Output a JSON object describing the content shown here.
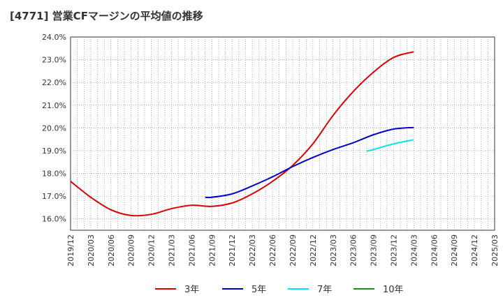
{
  "chart_data": {
    "type": "line",
    "title": "[4771]  営業CFマージンの平均値の推移",
    "xlabel": "",
    "ylabel": "",
    "x_ticks": [
      "2019/12",
      "2020/03",
      "2020/06",
      "2020/09",
      "2020/12",
      "2021/03",
      "2021/06",
      "2021/09",
      "2021/12",
      "2022/03",
      "2022/06",
      "2022/09",
      "2022/12",
      "2023/03",
      "2023/06",
      "2023/09",
      "2023/12",
      "2024/03",
      "2024/06",
      "2024/09",
      "2024/12",
      "2025/03"
    ],
    "y_ticks": [
      "16.0%",
      "17.0%",
      "18.0%",
      "19.0%",
      "20.0%",
      "21.0%",
      "22.0%",
      "23.0%",
      "24.0%"
    ],
    "ylim": [
      15.5,
      24.0
    ],
    "grid": true,
    "legend_position": "bottom",
    "series": [
      {
        "name": "3年",
        "color": "#dd0000",
        "x": [
          "2019/12",
          "2020/03",
          "2020/06",
          "2020/09",
          "2020/12",
          "2021/03",
          "2021/06",
          "2021/09",
          "2021/12",
          "2022/03",
          "2022/06",
          "2022/09",
          "2022/12",
          "2023/03",
          "2023/06",
          "2023/09",
          "2023/12",
          "2024/03"
        ],
        "values": [
          17.65,
          16.95,
          16.4,
          16.15,
          16.2,
          16.45,
          16.6,
          16.55,
          16.7,
          17.1,
          17.65,
          18.35,
          19.3,
          20.55,
          21.6,
          22.45,
          23.1,
          23.35
        ]
      },
      {
        "name": "5年",
        "color": "#0000cc",
        "x": [
          "2021/08",
          "2021/09",
          "2021/12",
          "2022/03",
          "2022/06",
          "2022/09",
          "2022/12",
          "2023/03",
          "2023/06",
          "2023/09",
          "2023/12",
          "2024/03"
        ],
        "values": [
          16.95,
          16.95,
          17.1,
          17.45,
          17.85,
          18.3,
          18.7,
          19.05,
          19.35,
          19.7,
          19.95,
          20.02
        ]
      },
      {
        "name": "7年",
        "color": "#00e5ee",
        "x": [
          "2023/08",
          "2023/09",
          "2023/12",
          "2024/03"
        ],
        "values": [
          18.98,
          19.05,
          19.3,
          19.48
        ]
      },
      {
        "name": "10年",
        "color": "#228b22",
        "x": [],
        "values": []
      }
    ]
  }
}
